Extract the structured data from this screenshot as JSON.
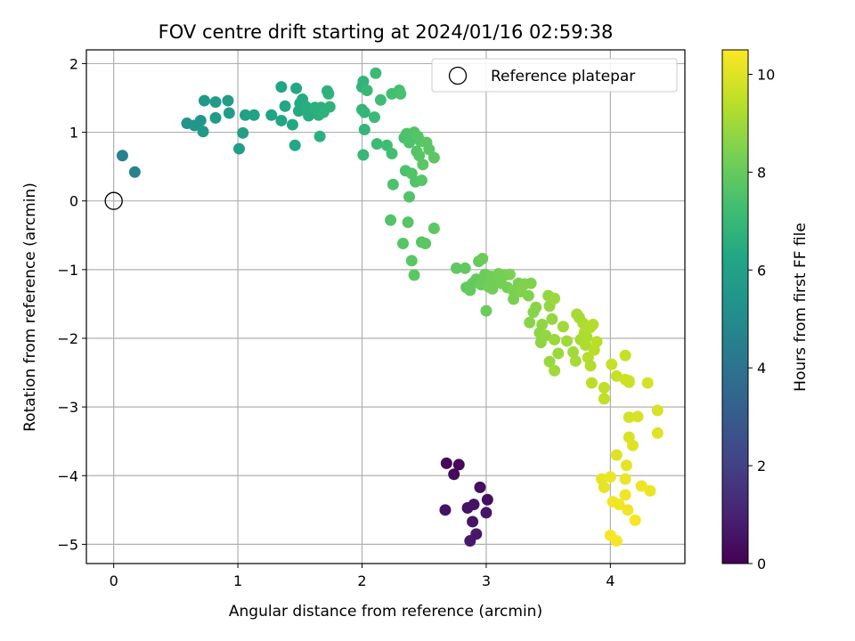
{
  "chart_data": {
    "type": "scatter",
    "title": "FOV centre drift starting at 2024/01/16 02:59:38",
    "xlabel": "Angular distance from reference (arcmin)",
    "ylabel": "Rotation from reference (arcmin)",
    "xlim": [
      -0.22,
      4.6
    ],
    "ylim": [
      -5.28,
      2.2
    ],
    "xticks": [
      0,
      1,
      2,
      3,
      4
    ],
    "yticks": [
      -5,
      -4,
      -3,
      -2,
      -1,
      0,
      1,
      2
    ],
    "xtick_labels": [
      "0",
      "1",
      "2",
      "3",
      "4"
    ],
    "ytick_labels": [
      "−5",
      "−4",
      "−3",
      "−2",
      "−1",
      "0",
      "1",
      "2"
    ],
    "grid": true,
    "legend": {
      "position": "top-right",
      "entries": [
        "Reference platepar"
      ]
    },
    "reference_point": {
      "x": 0,
      "y": 0,
      "label": "Reference platepar"
    },
    "colorbar": {
      "label": "Hours from first FF file",
      "colormap": "viridis",
      "range": [
        0,
        10.5
      ],
      "ticks": [
        0,
        2,
        4,
        6,
        8,
        10
      ],
      "tick_labels": [
        "0",
        "2",
        "4",
        "6",
        "8",
        "10"
      ]
    },
    "points": [
      {
        "x": 2.68,
        "y": -3.82,
        "c": 0.2
      },
      {
        "x": 2.78,
        "y": -3.84,
        "c": 0.2
      },
      {
        "x": 2.74,
        "y": -3.98,
        "c": 0.3
      },
      {
        "x": 2.95,
        "y": -4.17,
        "c": 0.4
      },
      {
        "x": 3.01,
        "y": -4.35,
        "c": 0.4
      },
      {
        "x": 2.9,
        "y": -4.42,
        "c": 0.5
      },
      {
        "x": 2.85,
        "y": -4.47,
        "c": 0.5
      },
      {
        "x": 2.67,
        "y": -4.5,
        "c": 0.5
      },
      {
        "x": 3.0,
        "y": -4.54,
        "c": 0.6
      },
      {
        "x": 2.89,
        "y": -4.67,
        "c": 0.6
      },
      {
        "x": 2.92,
        "y": -4.85,
        "c": 0.7
      },
      {
        "x": 2.87,
        "y": -4.95,
        "c": 0.7
      },
      {
        "x": 0.07,
        "y": 0.66,
        "c": 4.6
      },
      {
        "x": 0.17,
        "y": 0.42,
        "c": 4.7
      },
      {
        "x": 0.59,
        "y": 1.13,
        "c": 5.4
      },
      {
        "x": 0.65,
        "y": 1.1,
        "c": 5.5
      },
      {
        "x": 0.7,
        "y": 1.17,
        "c": 5.5
      },
      {
        "x": 0.72,
        "y": 1.01,
        "c": 5.6
      },
      {
        "x": 0.73,
        "y": 1.46,
        "c": 5.6
      },
      {
        "x": 0.82,
        "y": 1.44,
        "c": 5.7
      },
      {
        "x": 0.82,
        "y": 1.21,
        "c": 5.7
      },
      {
        "x": 0.92,
        "y": 1.46,
        "c": 5.8
      },
      {
        "x": 0.93,
        "y": 1.28,
        "c": 5.8
      },
      {
        "x": 1.01,
        "y": 0.76,
        "c": 5.9
      },
      {
        "x": 1.04,
        "y": 0.99,
        "c": 5.9
      },
      {
        "x": 1.06,
        "y": 1.25,
        "c": 6.0
      },
      {
        "x": 1.13,
        "y": 1.25,
        "c": 6.0
      },
      {
        "x": 1.27,
        "y": 1.25,
        "c": 6.1
      },
      {
        "x": 1.35,
        "y": 1.66,
        "c": 6.2
      },
      {
        "x": 1.35,
        "y": 1.17,
        "c": 6.2
      },
      {
        "x": 1.38,
        "y": 1.38,
        "c": 6.2
      },
      {
        "x": 1.44,
        "y": 1.11,
        "c": 6.3
      },
      {
        "x": 1.46,
        "y": 0.81,
        "c": 6.3
      },
      {
        "x": 1.47,
        "y": 1.64,
        "c": 6.3
      },
      {
        "x": 1.49,
        "y": 1.31,
        "c": 6.4
      },
      {
        "x": 1.5,
        "y": 1.42,
        "c": 6.4
      },
      {
        "x": 1.52,
        "y": 1.48,
        "c": 6.4
      },
      {
        "x": 1.55,
        "y": 1.37,
        "c": 6.5
      },
      {
        "x": 1.57,
        "y": 1.24,
        "c": 6.5
      },
      {
        "x": 1.6,
        "y": 1.3,
        "c": 6.5
      },
      {
        "x": 1.62,
        "y": 1.36,
        "c": 6.6
      },
      {
        "x": 1.65,
        "y": 1.25,
        "c": 6.6
      },
      {
        "x": 1.67,
        "y": 1.36,
        "c": 6.6
      },
      {
        "x": 1.66,
        "y": 0.94,
        "c": 6.6
      },
      {
        "x": 1.69,
        "y": 1.29,
        "c": 6.7
      },
      {
        "x": 1.72,
        "y": 1.6,
        "c": 6.7
      },
      {
        "x": 1.73,
        "y": 1.56,
        "c": 6.7
      },
      {
        "x": 1.74,
        "y": 1.37,
        "c": 6.7
      },
      {
        "x": 2.0,
        "y": 1.66,
        "c": 6.8
      },
      {
        "x": 2.01,
        "y": 1.74,
        "c": 6.8
      },
      {
        "x": 2.0,
        "y": 1.33,
        "c": 6.9
      },
      {
        "x": 2.02,
        "y": 1.04,
        "c": 6.9
      },
      {
        "x": 2.02,
        "y": 1.29,
        "c": 6.9
      },
      {
        "x": 2.01,
        "y": 0.67,
        "c": 7.0
      },
      {
        "x": 2.04,
        "y": 1.61,
        "c": 7.0
      },
      {
        "x": 2.11,
        "y": 1.86,
        "c": 7.1
      },
      {
        "x": 2.1,
        "y": 1.22,
        "c": 7.1
      },
      {
        "x": 2.12,
        "y": 0.83,
        "c": 7.1
      },
      {
        "x": 2.15,
        "y": 1.47,
        "c": 7.2
      },
      {
        "x": 2.2,
        "y": 0.81,
        "c": 7.2
      },
      {
        "x": 2.24,
        "y": 0.69,
        "c": 7.3
      },
      {
        "x": 2.24,
        "y": 1.56,
        "c": 7.3
      },
      {
        "x": 2.3,
        "y": 1.61,
        "c": 7.3
      },
      {
        "x": 2.31,
        "y": 1.56,
        "c": 7.4
      },
      {
        "x": 2.34,
        "y": 0.92,
        "c": 7.4
      },
      {
        "x": 2.35,
        "y": 0.44,
        "c": 7.5
      },
      {
        "x": 2.36,
        "y": 0.98,
        "c": 7.5
      },
      {
        "x": 2.38,
        "y": 0.85,
        "c": 7.5
      },
      {
        "x": 2.4,
        "y": 0.4,
        "c": 7.6
      },
      {
        "x": 2.42,
        "y": 1.0,
        "c": 7.6
      },
      {
        "x": 2.43,
        "y": 0.28,
        "c": 7.6
      },
      {
        "x": 2.44,
        "y": 0.72,
        "c": 7.6
      },
      {
        "x": 2.45,
        "y": 0.94,
        "c": 7.7
      },
      {
        "x": 2.46,
        "y": 0.66,
        "c": 7.7
      },
      {
        "x": 2.47,
        "y": 0.87,
        "c": 7.7
      },
      {
        "x": 2.48,
        "y": 0.3,
        "c": 7.7
      },
      {
        "x": 2.49,
        "y": 0.53,
        "c": 7.8
      },
      {
        "x": 2.52,
        "y": 0.85,
        "c": 7.8
      },
      {
        "x": 2.54,
        "y": 0.75,
        "c": 7.8
      },
      {
        "x": 2.58,
        "y": 0.63,
        "c": 7.8
      },
      {
        "x": 2.25,
        "y": 0.24,
        "c": 7.5
      },
      {
        "x": 2.38,
        "y": 0.06,
        "c": 7.6
      },
      {
        "x": 2.23,
        "y": -0.28,
        "c": 7.6
      },
      {
        "x": 2.37,
        "y": -0.31,
        "c": 7.7
      },
      {
        "x": 2.33,
        "y": -0.62,
        "c": 7.7
      },
      {
        "x": 2.48,
        "y": -0.6,
        "c": 7.7
      },
      {
        "x": 2.51,
        "y": -0.62,
        "c": 7.8
      },
      {
        "x": 2.58,
        "y": -0.4,
        "c": 7.8
      },
      {
        "x": 2.4,
        "y": -0.87,
        "c": 7.8
      },
      {
        "x": 2.42,
        "y": -1.08,
        "c": 7.8
      },
      {
        "x": 2.76,
        "y": -0.98,
        "c": 7.9
      },
      {
        "x": 2.83,
        "y": -0.98,
        "c": 7.9
      },
      {
        "x": 2.84,
        "y": -1.26,
        "c": 7.9
      },
      {
        "x": 2.87,
        "y": -1.3,
        "c": 8.0
      },
      {
        "x": 2.89,
        "y": -1.2,
        "c": 8.0
      },
      {
        "x": 2.92,
        "y": -1.14,
        "c": 8.0
      },
      {
        "x": 2.94,
        "y": -0.88,
        "c": 8.0
      },
      {
        "x": 2.96,
        "y": -1.22,
        "c": 8.1
      },
      {
        "x": 2.97,
        "y": -0.84,
        "c": 8.1
      },
      {
        "x": 2.99,
        "y": -1.07,
        "c": 8.1
      },
      {
        "x": 3.0,
        "y": -1.15,
        "c": 8.1
      },
      {
        "x": 3.0,
        "y": -1.6,
        "c": 8.1
      },
      {
        "x": 3.02,
        "y": -1.25,
        "c": 8.2
      },
      {
        "x": 3.04,
        "y": -1.1,
        "c": 8.2
      },
      {
        "x": 3.05,
        "y": -1.28,
        "c": 8.2
      },
      {
        "x": 3.07,
        "y": -1.17,
        "c": 8.2
      },
      {
        "x": 3.1,
        "y": -1.06,
        "c": 8.3
      },
      {
        "x": 3.12,
        "y": -1.2,
        "c": 8.3
      },
      {
        "x": 3.15,
        "y": -1.08,
        "c": 8.3
      },
      {
        "x": 3.17,
        "y": -1.26,
        "c": 8.3
      },
      {
        "x": 3.19,
        "y": -1.07,
        "c": 8.4
      },
      {
        "x": 3.22,
        "y": -1.31,
        "c": 8.4
      },
      {
        "x": 3.22,
        "y": -1.43,
        "c": 8.4
      },
      {
        "x": 3.26,
        "y": -1.2,
        "c": 8.4
      },
      {
        "x": 3.28,
        "y": -1.32,
        "c": 8.5
      },
      {
        "x": 3.31,
        "y": -1.21,
        "c": 8.5
      },
      {
        "x": 3.34,
        "y": -1.38,
        "c": 8.5
      },
      {
        "x": 3.36,
        "y": -1.2,
        "c": 8.5
      },
      {
        "x": 3.35,
        "y": -1.77,
        "c": 8.6
      },
      {
        "x": 3.38,
        "y": -1.62,
        "c": 8.6
      },
      {
        "x": 3.4,
        "y": -1.55,
        "c": 8.6
      },
      {
        "x": 3.43,
        "y": -1.92,
        "c": 8.7
      },
      {
        "x": 3.44,
        "y": -2.06,
        "c": 8.7
      },
      {
        "x": 3.45,
        "y": -1.8,
        "c": 8.7
      },
      {
        "x": 3.48,
        "y": -1.96,
        "c": 8.8
      },
      {
        "x": 3.5,
        "y": -1.38,
        "c": 8.8
      },
      {
        "x": 3.51,
        "y": -1.53,
        "c": 8.8
      },
      {
        "x": 3.53,
        "y": -1.72,
        "c": 8.8
      },
      {
        "x": 3.55,
        "y": -1.42,
        "c": 8.9
      },
      {
        "x": 3.55,
        "y": -2.02,
        "c": 8.9
      },
      {
        "x": 3.58,
        "y": -2.22,
        "c": 8.9
      },
      {
        "x": 3.51,
        "y": -2.34,
        "c": 8.9
      },
      {
        "x": 3.55,
        "y": -2.47,
        "c": 9.0
      },
      {
        "x": 3.62,
        "y": -1.83,
        "c": 9.0
      },
      {
        "x": 3.65,
        "y": -2.04,
        "c": 9.0
      },
      {
        "x": 3.7,
        "y": -2.2,
        "c": 9.0
      },
      {
        "x": 3.72,
        "y": -2.33,
        "c": 9.1
      },
      {
        "x": 3.73,
        "y": -1.65,
        "c": 9.1
      },
      {
        "x": 3.75,
        "y": -1.7,
        "c": 9.1
      },
      {
        "x": 3.76,
        "y": -2.02,
        "c": 9.1
      },
      {
        "x": 3.78,
        "y": -1.78,
        "c": 9.2
      },
      {
        "x": 3.79,
        "y": -1.92,
        "c": 9.2
      },
      {
        "x": 3.8,
        "y": -2.1,
        "c": 9.2
      },
      {
        "x": 3.81,
        "y": -1.98,
        "c": 9.2
      },
      {
        "x": 3.82,
        "y": -2.28,
        "c": 9.3
      },
      {
        "x": 3.84,
        "y": -1.84,
        "c": 9.3
      },
      {
        "x": 3.84,
        "y": -2.4,
        "c": 9.3
      },
      {
        "x": 3.86,
        "y": -1.8,
        "c": 9.3
      },
      {
        "x": 3.87,
        "y": -2.17,
        "c": 9.4
      },
      {
        "x": 3.89,
        "y": -2.05,
        "c": 9.4
      },
      {
        "x": 3.85,
        "y": -2.65,
        "c": 9.4
      },
      {
        "x": 3.95,
        "y": -2.72,
        "c": 9.5
      },
      {
        "x": 3.95,
        "y": -2.88,
        "c": 9.5
      },
      {
        "x": 4.01,
        "y": -2.38,
        "c": 9.6
      },
      {
        "x": 4.05,
        "y": -2.55,
        "c": 9.6
      },
      {
        "x": 4.12,
        "y": -2.25,
        "c": 9.6
      },
      {
        "x": 4.12,
        "y": -2.6,
        "c": 9.7
      },
      {
        "x": 4.15,
        "y": -2.64,
        "c": 9.7
      },
      {
        "x": 4.15,
        "y": -2.62,
        "c": 9.7
      },
      {
        "x": 4.3,
        "y": -2.65,
        "c": 9.8
      },
      {
        "x": 4.15,
        "y": -3.15,
        "c": 9.8
      },
      {
        "x": 4.22,
        "y": -3.14,
        "c": 9.9
      },
      {
        "x": 4.38,
        "y": -3.05,
        "c": 9.9
      },
      {
        "x": 4.15,
        "y": -3.44,
        "c": 9.9
      },
      {
        "x": 4.18,
        "y": -3.56,
        "c": 10.0
      },
      {
        "x": 4.38,
        "y": -3.38,
        "c": 10.0
      },
      {
        "x": 4.05,
        "y": -3.7,
        "c": 10.0
      },
      {
        "x": 4.13,
        "y": -3.85,
        "c": 10.1
      },
      {
        "x": 3.93,
        "y": -4.05,
        "c": 10.1
      },
      {
        "x": 3.95,
        "y": -4.17,
        "c": 10.1
      },
      {
        "x": 4.0,
        "y": -4.02,
        "c": 10.2
      },
      {
        "x": 4.12,
        "y": -4.05,
        "c": 10.2
      },
      {
        "x": 4.25,
        "y": -4.15,
        "c": 10.2
      },
      {
        "x": 4.32,
        "y": -4.22,
        "c": 10.2
      },
      {
        "x": 4.12,
        "y": -4.28,
        "c": 10.3
      },
      {
        "x": 4.02,
        "y": -4.38,
        "c": 10.3
      },
      {
        "x": 4.07,
        "y": -4.42,
        "c": 10.3
      },
      {
        "x": 4.14,
        "y": -4.5,
        "c": 10.3
      },
      {
        "x": 4.2,
        "y": -4.65,
        "c": 10.4
      },
      {
        "x": 4.0,
        "y": -4.87,
        "c": 10.4
      },
      {
        "x": 4.05,
        "y": -4.95,
        "c": 10.4
      }
    ]
  }
}
